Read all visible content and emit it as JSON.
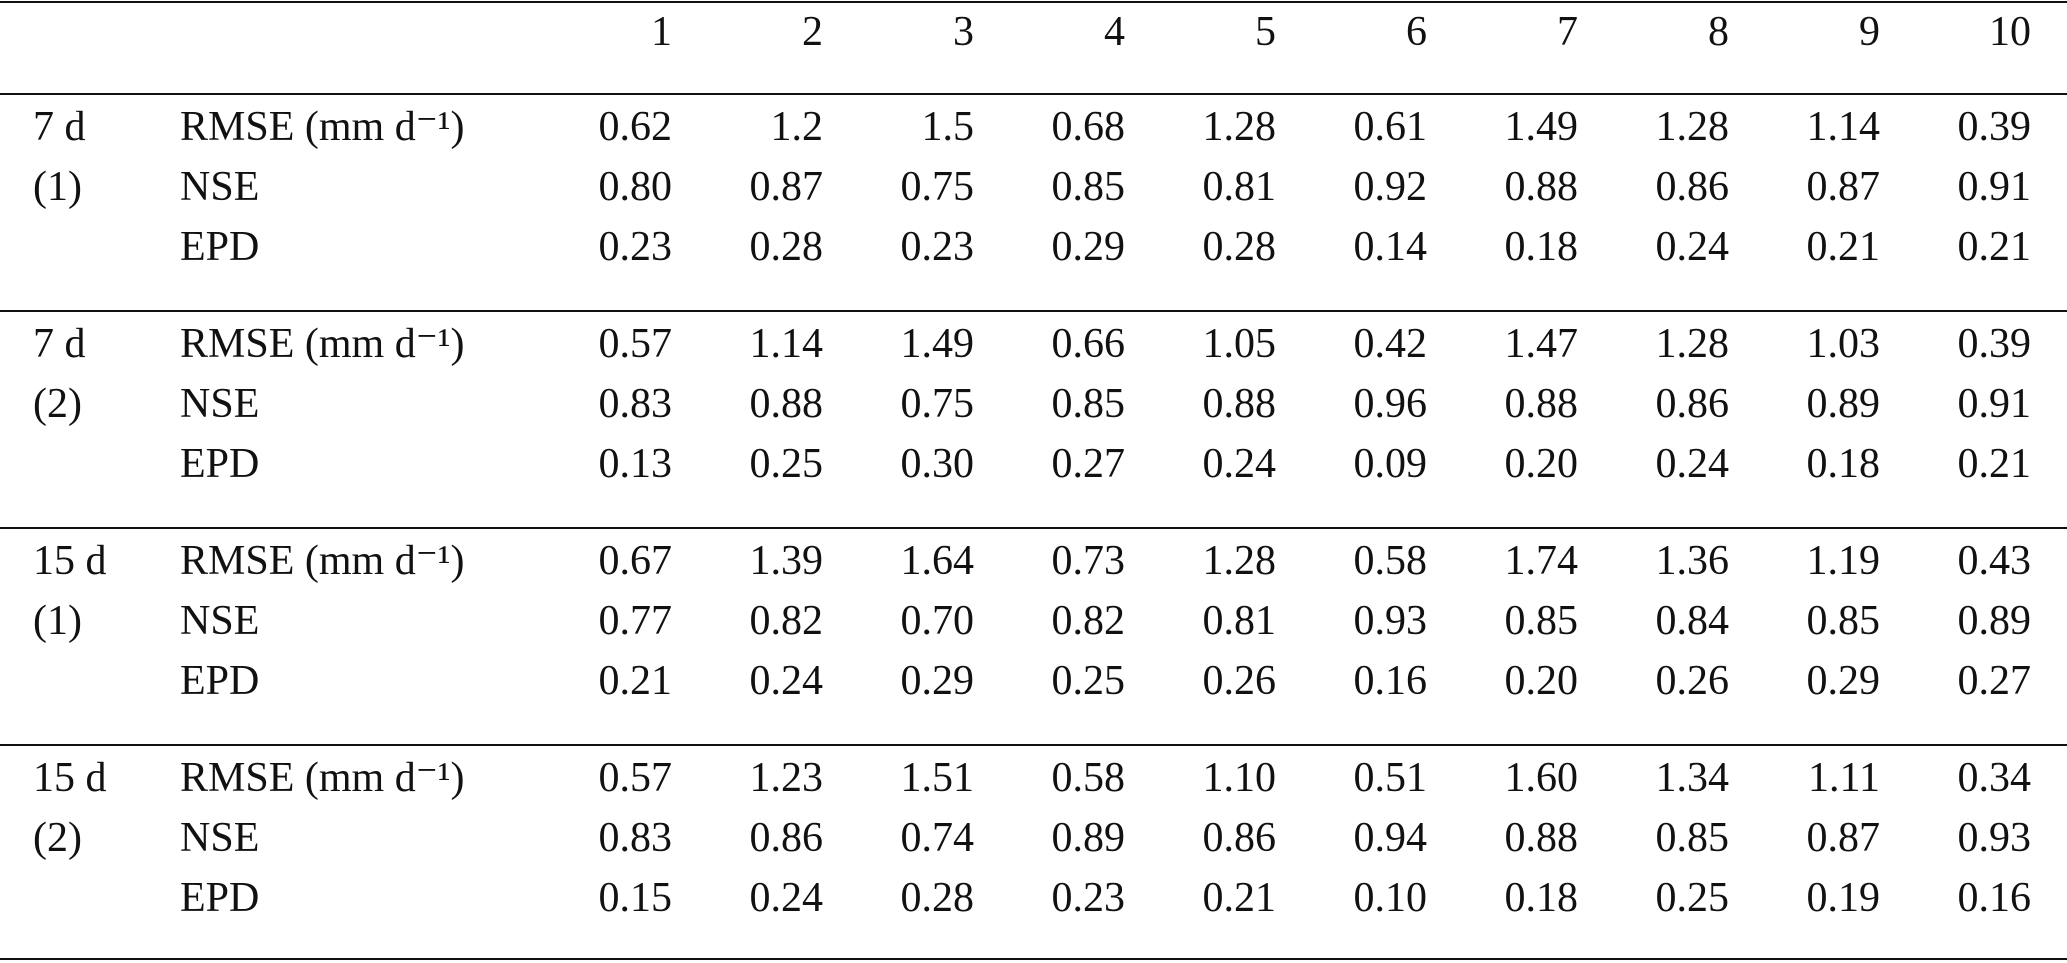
{
  "header": {
    "columns": [
      "1",
      "2",
      "3",
      "4",
      "5",
      "6",
      "7",
      "8",
      "9",
      "10"
    ]
  },
  "groups": [
    {
      "label": [
        "7 d",
        "(1)"
      ],
      "rows": [
        {
          "metric": "RMSE (mm d⁻¹)",
          "values": [
            "0.62",
            "1.2",
            "1.5",
            "0.68",
            "1.28",
            "0.61",
            "1.49",
            "1.28",
            "1.14",
            "0.39"
          ]
        },
        {
          "metric": "NSE",
          "values": [
            "0.80",
            "0.87",
            "0.75",
            "0.85",
            "0.81",
            "0.92",
            "0.88",
            "0.86",
            "0.87",
            "0.91"
          ]
        },
        {
          "metric": "EPD",
          "values": [
            "0.23",
            "0.28",
            "0.23",
            "0.29",
            "0.28",
            "0.14",
            "0.18",
            "0.24",
            "0.21",
            "0.21"
          ]
        }
      ]
    },
    {
      "label": [
        "7 d",
        "(2)"
      ],
      "rows": [
        {
          "metric": "RMSE (mm d⁻¹)",
          "values": [
            "0.57",
            "1.14",
            "1.49",
            "0.66",
            "1.05",
            "0.42",
            "1.47",
            "1.28",
            "1.03",
            "0.39"
          ]
        },
        {
          "metric": "NSE",
          "values": [
            "0.83",
            "0.88",
            "0.75",
            "0.85",
            "0.88",
            "0.96",
            "0.88",
            "0.86",
            "0.89",
            "0.91"
          ]
        },
        {
          "metric": "EPD",
          "values": [
            "0.13",
            "0.25",
            "0.30",
            "0.27",
            "0.24",
            "0.09",
            "0.20",
            "0.24",
            "0.18",
            "0.21"
          ]
        }
      ]
    },
    {
      "label": [
        "15 d",
        "(1)"
      ],
      "rows": [
        {
          "metric": "RMSE (mm d⁻¹)",
          "values": [
            "0.67",
            "1.39",
            "1.64",
            "0.73",
            "1.28",
            "0.58",
            "1.74",
            "1.36",
            "1.19",
            "0.43"
          ]
        },
        {
          "metric": "NSE",
          "values": [
            "0.77",
            "0.82",
            "0.70",
            "0.82",
            "0.81",
            "0.93",
            "0.85",
            "0.84",
            "0.85",
            "0.89"
          ]
        },
        {
          "metric": "EPD",
          "values": [
            "0.21",
            "0.24",
            "0.29",
            "0.25",
            "0.26",
            "0.16",
            "0.20",
            "0.26",
            "0.29",
            "0.27"
          ]
        }
      ]
    },
    {
      "label": [
        "15 d",
        "(2)"
      ],
      "rows": [
        {
          "metric": "RMSE (mm d⁻¹)",
          "values": [
            "0.57",
            "1.23",
            "1.51",
            "0.58",
            "1.10",
            "0.51",
            "1.60",
            "1.34",
            "1.11",
            "0.34"
          ]
        },
        {
          "metric": "NSE",
          "values": [
            "0.83",
            "0.86",
            "0.74",
            "0.89",
            "0.86",
            "0.94",
            "0.88",
            "0.85",
            "0.87",
            "0.93"
          ]
        },
        {
          "metric": "EPD",
          "values": [
            "0.15",
            "0.24",
            "0.28",
            "0.23",
            "0.21",
            "0.10",
            "0.18",
            "0.25",
            "0.19",
            "0.16"
          ]
        }
      ]
    }
  ]
}
